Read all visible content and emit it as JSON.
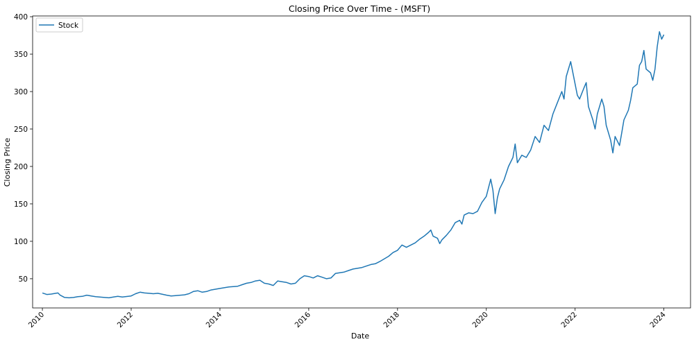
{
  "chart_data": {
    "type": "line",
    "title": "Closing Price Over Time - (MSFT)",
    "xlabel": "Date",
    "ylabel": "Closing Price",
    "xlim": [
      2009.78,
      2024.6
    ],
    "ylim": [
      11,
      401
    ],
    "x_ticks": [
      {
        "value": 2010,
        "label": "2010"
      },
      {
        "value": 2012,
        "label": "2012"
      },
      {
        "value": 2014,
        "label": "2014"
      },
      {
        "value": 2016,
        "label": "2016"
      },
      {
        "value": 2018,
        "label": "2018"
      },
      {
        "value": 2020,
        "label": "2020"
      },
      {
        "value": 2022,
        "label": "2022"
      },
      {
        "value": 2024,
        "label": "2024"
      }
    ],
    "y_ticks": [
      {
        "value": 50,
        "label": "50"
      },
      {
        "value": 100,
        "label": "100"
      },
      {
        "value": 150,
        "label": "150"
      },
      {
        "value": 200,
        "label": "200"
      },
      {
        "value": 250,
        "label": "250"
      },
      {
        "value": 300,
        "label": "300"
      },
      {
        "value": 350,
        "label": "350"
      },
      {
        "value": 400,
        "label": "400"
      }
    ],
    "grid": false,
    "legend": {
      "placement": "top-left"
    },
    "colors": {
      "line": "#1f77b4"
    },
    "series": [
      {
        "name": "Stock",
        "points": [
          {
            "x": 2010.0,
            "y": 31
          },
          {
            "x": 2010.1,
            "y": 29
          },
          {
            "x": 2010.2,
            "y": 29.5
          },
          {
            "x": 2010.3,
            "y": 30.5
          },
          {
            "x": 2010.35,
            "y": 31
          },
          {
            "x": 2010.4,
            "y": 28
          },
          {
            "x": 2010.5,
            "y": 25
          },
          {
            "x": 2010.6,
            "y": 24.5
          },
          {
            "x": 2010.7,
            "y": 25
          },
          {
            "x": 2010.8,
            "y": 26
          },
          {
            "x": 2010.9,
            "y": 26.5
          },
          {
            "x": 2011.0,
            "y": 28
          },
          {
            "x": 2011.1,
            "y": 27
          },
          {
            "x": 2011.2,
            "y": 26
          },
          {
            "x": 2011.4,
            "y": 25
          },
          {
            "x": 2011.5,
            "y": 24.5
          },
          {
            "x": 2011.6,
            "y": 25.5
          },
          {
            "x": 2011.7,
            "y": 26.5
          },
          {
            "x": 2011.8,
            "y": 25.5
          },
          {
            "x": 2012.0,
            "y": 27
          },
          {
            "x": 2012.1,
            "y": 30
          },
          {
            "x": 2012.2,
            "y": 32
          },
          {
            "x": 2012.3,
            "y": 31
          },
          {
            "x": 2012.4,
            "y": 30.5
          },
          {
            "x": 2012.5,
            "y": 30
          },
          {
            "x": 2012.6,
            "y": 30.5
          },
          {
            "x": 2012.8,
            "y": 28
          },
          {
            "x": 2012.9,
            "y": 27
          },
          {
            "x": 2013.0,
            "y": 27.5
          },
          {
            "x": 2013.2,
            "y": 28.5
          },
          {
            "x": 2013.3,
            "y": 30
          },
          {
            "x": 2013.4,
            "y": 33
          },
          {
            "x": 2013.5,
            "y": 34
          },
          {
            "x": 2013.6,
            "y": 32
          },
          {
            "x": 2013.7,
            "y": 33
          },
          {
            "x": 2013.8,
            "y": 35
          },
          {
            "x": 2014.0,
            "y": 37
          },
          {
            "x": 2014.2,
            "y": 39
          },
          {
            "x": 2014.4,
            "y": 40
          },
          {
            "x": 2014.5,
            "y": 42
          },
          {
            "x": 2014.6,
            "y": 44
          },
          {
            "x": 2014.7,
            "y": 45
          },
          {
            "x": 2014.8,
            "y": 47
          },
          {
            "x": 2014.9,
            "y": 48
          },
          {
            "x": 2015.0,
            "y": 44
          },
          {
            "x": 2015.1,
            "y": 43
          },
          {
            "x": 2015.2,
            "y": 41
          },
          {
            "x": 2015.3,
            "y": 47
          },
          {
            "x": 2015.4,
            "y": 46
          },
          {
            "x": 2015.5,
            "y": 45
          },
          {
            "x": 2015.6,
            "y": 43
          },
          {
            "x": 2015.7,
            "y": 44
          },
          {
            "x": 2015.8,
            "y": 50
          },
          {
            "x": 2015.9,
            "y": 54
          },
          {
            "x": 2016.0,
            "y": 53
          },
          {
            "x": 2016.1,
            "y": 51
          },
          {
            "x": 2016.2,
            "y": 54
          },
          {
            "x": 2016.3,
            "y": 52
          },
          {
            "x": 2016.4,
            "y": 50
          },
          {
            "x": 2016.5,
            "y": 51
          },
          {
            "x": 2016.6,
            "y": 57
          },
          {
            "x": 2016.7,
            "y": 58
          },
          {
            "x": 2016.8,
            "y": 59
          },
          {
            "x": 2016.9,
            "y": 61
          },
          {
            "x": 2017.0,
            "y": 63
          },
          {
            "x": 2017.2,
            "y": 65
          },
          {
            "x": 2017.4,
            "y": 69
          },
          {
            "x": 2017.5,
            "y": 70
          },
          {
            "x": 2017.6,
            "y": 73
          },
          {
            "x": 2017.8,
            "y": 80
          },
          {
            "x": 2017.9,
            "y": 85
          },
          {
            "x": 2018.0,
            "y": 88
          },
          {
            "x": 2018.1,
            "y": 95
          },
          {
            "x": 2018.2,
            "y": 92
          },
          {
            "x": 2018.3,
            "y": 95
          },
          {
            "x": 2018.4,
            "y": 98
          },
          {
            "x": 2018.5,
            "y": 103
          },
          {
            "x": 2018.6,
            "y": 107
          },
          {
            "x": 2018.7,
            "y": 112
          },
          {
            "x": 2018.75,
            "y": 115
          },
          {
            "x": 2018.8,
            "y": 107
          },
          {
            "x": 2018.9,
            "y": 104
          },
          {
            "x": 2018.95,
            "y": 97
          },
          {
            "x": 2019.0,
            "y": 102
          },
          {
            "x": 2019.1,
            "y": 108
          },
          {
            "x": 2019.2,
            "y": 115
          },
          {
            "x": 2019.3,
            "y": 125
          },
          {
            "x": 2019.4,
            "y": 128
          },
          {
            "x": 2019.45,
            "y": 123
          },
          {
            "x": 2019.5,
            "y": 135
          },
          {
            "x": 2019.6,
            "y": 138
          },
          {
            "x": 2019.7,
            "y": 137
          },
          {
            "x": 2019.8,
            "y": 140
          },
          {
            "x": 2019.9,
            "y": 152
          },
          {
            "x": 2020.0,
            "y": 160
          },
          {
            "x": 2020.1,
            "y": 183
          },
          {
            "x": 2020.15,
            "y": 168
          },
          {
            "x": 2020.2,
            "y": 137
          },
          {
            "x": 2020.25,
            "y": 158
          },
          {
            "x": 2020.3,
            "y": 170
          },
          {
            "x": 2020.4,
            "y": 182
          },
          {
            "x": 2020.5,
            "y": 200
          },
          {
            "x": 2020.6,
            "y": 212
          },
          {
            "x": 2020.65,
            "y": 230
          },
          {
            "x": 2020.7,
            "y": 205
          },
          {
            "x": 2020.8,
            "y": 215
          },
          {
            "x": 2020.9,
            "y": 212
          },
          {
            "x": 2021.0,
            "y": 222
          },
          {
            "x": 2021.1,
            "y": 240
          },
          {
            "x": 2021.2,
            "y": 232
          },
          {
            "x": 2021.3,
            "y": 255
          },
          {
            "x": 2021.4,
            "y": 248
          },
          {
            "x": 2021.5,
            "y": 270
          },
          {
            "x": 2021.6,
            "y": 285
          },
          {
            "x": 2021.7,
            "y": 300
          },
          {
            "x": 2021.75,
            "y": 290
          },
          {
            "x": 2021.8,
            "y": 320
          },
          {
            "x": 2021.9,
            "y": 340
          },
          {
            "x": 2022.0,
            "y": 310
          },
          {
            "x": 2022.05,
            "y": 295
          },
          {
            "x": 2022.1,
            "y": 290
          },
          {
            "x": 2022.2,
            "y": 305
          },
          {
            "x": 2022.25,
            "y": 312
          },
          {
            "x": 2022.3,
            "y": 280
          },
          {
            "x": 2022.4,
            "y": 262
          },
          {
            "x": 2022.45,
            "y": 250
          },
          {
            "x": 2022.5,
            "y": 270
          },
          {
            "x": 2022.6,
            "y": 290
          },
          {
            "x": 2022.65,
            "y": 280
          },
          {
            "x": 2022.7,
            "y": 255
          },
          {
            "x": 2022.8,
            "y": 235
          },
          {
            "x": 2022.85,
            "y": 218
          },
          {
            "x": 2022.9,
            "y": 240
          },
          {
            "x": 2023.0,
            "y": 228
          },
          {
            "x": 2023.05,
            "y": 245
          },
          {
            "x": 2023.1,
            "y": 262
          },
          {
            "x": 2023.2,
            "y": 275
          },
          {
            "x": 2023.25,
            "y": 288
          },
          {
            "x": 2023.3,
            "y": 305
          },
          {
            "x": 2023.4,
            "y": 310
          },
          {
            "x": 2023.45,
            "y": 335
          },
          {
            "x": 2023.5,
            "y": 340
          },
          {
            "x": 2023.55,
            "y": 355
          },
          {
            "x": 2023.6,
            "y": 330
          },
          {
            "x": 2023.7,
            "y": 325
          },
          {
            "x": 2023.75,
            "y": 315
          },
          {
            "x": 2023.8,
            "y": 330
          },
          {
            "x": 2023.85,
            "y": 360
          },
          {
            "x": 2023.9,
            "y": 380
          },
          {
            "x": 2023.95,
            "y": 370
          },
          {
            "x": 2024.0,
            "y": 376
          }
        ]
      }
    ]
  }
}
